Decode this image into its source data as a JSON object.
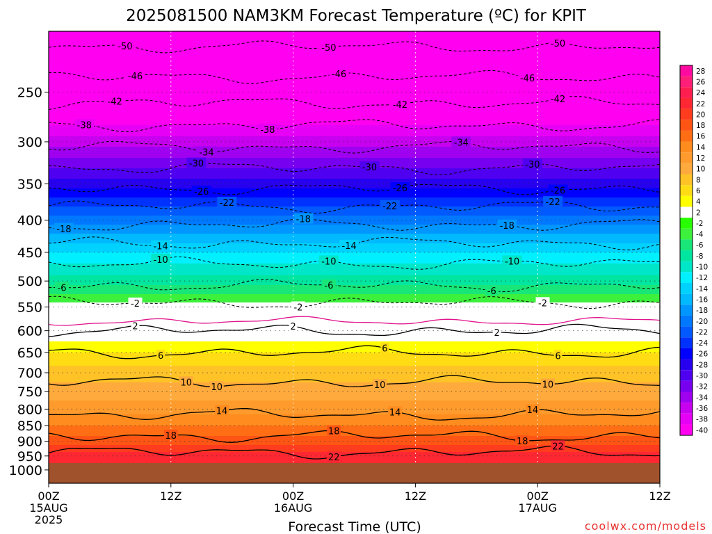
{
  "chart_data": {
    "type": "heatmap",
    "title": "2025081500 NAM3KM Forecast Temperature (ºC) for KPIT",
    "xlabel": "Forecast Time (UTC)",
    "ylabel": "",
    "credit": "coolwx.com/models",
    "x_ticks": [
      {
        "hour": 0,
        "label": "00Z",
        "sub1": "15AUG",
        "sub2": "2025"
      },
      {
        "hour": 12,
        "label": "12Z",
        "sub1": "",
        "sub2": ""
      },
      {
        "hour": 24,
        "label": "00Z",
        "sub1": "16AUG",
        "sub2": ""
      },
      {
        "hour": 36,
        "label": "12Z",
        "sub1": "",
        "sub2": ""
      },
      {
        "hour": 48,
        "label": "00Z",
        "sub1": "17AUG",
        "sub2": ""
      },
      {
        "hour": 60,
        "label": "12Z",
        "sub1": "",
        "sub2": ""
      }
    ],
    "xlim": [
      0,
      60
    ],
    "pressure_ticks": [
      250,
      300,
      350,
      400,
      450,
      500,
      550,
      600,
      650,
      700,
      750,
      800,
      850,
      900,
      950,
      1000
    ],
    "ylim": [
      1050,
      200
    ],
    "yscale": "log",
    "surface_pressure": 975,
    "temperature_profile": [
      {
        "p": 200,
        "t": -52
      },
      {
        "p": 250,
        "t": -44
      },
      {
        "p": 300,
        "t": -35
      },
      {
        "p": 350,
        "t": -27
      },
      {
        "p": 400,
        "t": -19
      },
      {
        "p": 450,
        "t": -12
      },
      {
        "p": 500,
        "t": -7
      },
      {
        "p": 550,
        "t": -1
      },
      {
        "p": 600,
        "t": 2
      },
      {
        "p": 650,
        "t": 6
      },
      {
        "p": 700,
        "t": 9
      },
      {
        "p": 750,
        "t": 11
      },
      {
        "p": 800,
        "t": 13
      },
      {
        "p": 850,
        "t": 16
      },
      {
        "p": 900,
        "t": 19
      },
      {
        "p": 950,
        "t": 23
      },
      {
        "p": 975,
        "t": 24
      }
    ],
    "contours_dashed": [
      {
        "value": -50,
        "labels": [
          {
            "hour": 7.5,
            "text": "-50"
          },
          {
            "hour": 27.5,
            "text": "-50"
          },
          {
            "hour": 50,
            "text": "-50"
          }
        ]
      },
      {
        "value": -46,
        "labels": [
          {
            "hour": 8.5,
            "text": "-46"
          },
          {
            "hour": 28.5,
            "text": "-46"
          },
          {
            "hour": 47,
            "text": "-46"
          }
        ]
      },
      {
        "value": -42,
        "labels": [
          {
            "hour": 6.5,
            "text": "-42"
          },
          {
            "hour": 34.5,
            "text": "-42"
          },
          {
            "hour": 50,
            "text": "-42"
          }
        ]
      },
      {
        "value": -38,
        "labels": [
          {
            "hour": 3.5,
            "text": "-38"
          },
          {
            "hour": 21.5,
            "text": "-38"
          }
        ]
      },
      {
        "value": -34,
        "labels": [
          {
            "hour": 15.5,
            "text": "-34"
          },
          {
            "hour": 40.5,
            "text": "-34"
          }
        ]
      },
      {
        "value": -30,
        "labels": [
          {
            "hour": 14.5,
            "text": "-30"
          },
          {
            "hour": 31.5,
            "text": "-30"
          },
          {
            "hour": 47.5,
            "text": "-30"
          }
        ]
      },
      {
        "value": -26,
        "labels": [
          {
            "hour": 15,
            "text": "-26"
          },
          {
            "hour": 34.5,
            "text": "-26"
          },
          {
            "hour": 50,
            "text": "-26"
          }
        ]
      },
      {
        "value": -22,
        "labels": [
          {
            "hour": 17.5,
            "text": "-22"
          },
          {
            "hour": 33.5,
            "text": "-22"
          },
          {
            "hour": 49.5,
            "text": "-22"
          }
        ]
      },
      {
        "value": -18,
        "labels": [
          {
            "hour": 1.5,
            "text": "-18"
          },
          {
            "hour": 25,
            "text": "-18"
          },
          {
            "hour": 45,
            "text": "-18"
          }
        ]
      },
      {
        "value": -14,
        "labels": [
          {
            "hour": 11,
            "text": "-14"
          },
          {
            "hour": 29.5,
            "text": "-14"
          }
        ]
      },
      {
        "value": -10,
        "labels": [
          {
            "hour": 11,
            "text": "-10"
          },
          {
            "hour": 27.5,
            "text": "-10"
          },
          {
            "hour": 45.5,
            "text": "-10"
          }
        ]
      },
      {
        "value": -6,
        "labels": [
          {
            "hour": 1.3,
            "text": "-6"
          },
          {
            "hour": 27.5,
            "text": "-6"
          },
          {
            "hour": 43.5,
            "text": "-6"
          }
        ]
      },
      {
        "value": -2,
        "labels": [
          {
            "hour": 8.5,
            "text": "-2"
          },
          {
            "hour": 24.5,
            "text": "-2"
          },
          {
            "hour": 48.5,
            "text": "-2"
          }
        ]
      }
    ],
    "contours_solid": [
      {
        "value": 2,
        "labels": [
          {
            "hour": 8.5,
            "text": "2"
          },
          {
            "hour": 24,
            "text": "2"
          },
          {
            "hour": 44,
            "text": "2"
          }
        ]
      },
      {
        "value": 6,
        "labels": [
          {
            "hour": 11,
            "text": "6"
          },
          {
            "hour": 33,
            "text": "6"
          },
          {
            "hour": 50,
            "text": "6"
          }
        ]
      },
      {
        "value": 10,
        "labels": [
          {
            "hour": 13.5,
            "text": "10"
          },
          {
            "hour": 16.5,
            "text": "10"
          },
          {
            "hour": 32.5,
            "text": "10"
          },
          {
            "hour": 49,
            "text": "10"
          }
        ]
      },
      {
        "value": 14,
        "labels": [
          {
            "hour": 17,
            "text": "14"
          },
          {
            "hour": 34,
            "text": "14"
          },
          {
            "hour": 47.5,
            "text": "14"
          }
        ]
      },
      {
        "value": 18,
        "labels": [
          {
            "hour": 12,
            "text": "18"
          },
          {
            "hour": 28,
            "text": "18"
          },
          {
            "hour": 46.5,
            "text": "18"
          }
        ]
      },
      {
        "value": 22,
        "labels": [
          {
            "hour": 28,
            "text": "22"
          },
          {
            "hour": 50,
            "text": "22"
          }
        ]
      }
    ],
    "legend": {
      "placement": "right",
      "levels": [
        28,
        26,
        24,
        22,
        20,
        18,
        16,
        14,
        12,
        10,
        8,
        6,
        4,
        2,
        -2,
        -4,
        -6,
        -8,
        -10,
        -12,
        -14,
        -16,
        -18,
        -20,
        -22,
        -24,
        -26,
        -28,
        -30,
        -32,
        -34,
        -36,
        -38,
        -40
      ],
      "colors": [
        "#ff0aa0",
        "#ff1e78",
        "#ff1e50",
        "#ff2832",
        "#ff3c1e",
        "#ff5514",
        "#ff6e14",
        "#ff8c1e",
        "#ff9b2d",
        "#ffaa3c",
        "#ffc328",
        "#ffdc14",
        "#ffff00",
        "#ffffff",
        "#28ff00",
        "#3cf03c",
        "#19e678",
        "#00e6a0",
        "#00e6c8",
        "#00f0ff",
        "#00d2ff",
        "#00b9ff",
        "#0096ff",
        "#0078ff",
        "#005aff",
        "#0032ff",
        "#0000ff",
        "#2800f0",
        "#5000f0",
        "#7800f0",
        "#a000f0",
        "#c800f0",
        "#e600f5",
        "#ff00f0"
      ]
    },
    "ground_color": "#a0522d",
    "grid": true
  }
}
